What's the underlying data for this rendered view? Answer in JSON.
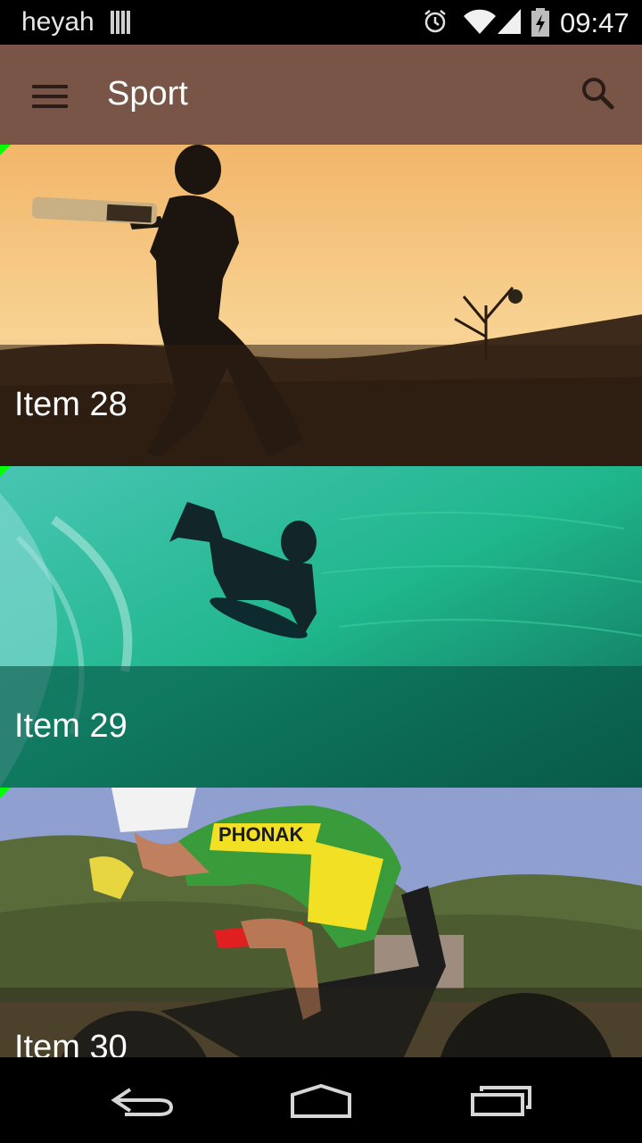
{
  "status_bar": {
    "carrier": "heyah",
    "time": "09:47",
    "icons": [
      "sim-icon",
      "alarm-icon",
      "wifi-icon",
      "signal-icon",
      "battery-charging-icon"
    ]
  },
  "app_bar": {
    "title": "Sport",
    "menu_icon": "hamburger-menu-icon",
    "search_icon": "search-icon",
    "color": "#795548"
  },
  "items": [
    {
      "label": "Item 28",
      "image": "cricket batsman silhouette at sunset"
    },
    {
      "label": "Item 29",
      "image": "bodyboarder riding a green wave"
    },
    {
      "label": "Item 30",
      "image": "cyclist in green-yellow jersey on time-trial bike"
    }
  ],
  "nav_bar": {
    "icons": [
      "back-icon",
      "home-icon",
      "recent-apps-icon"
    ]
  }
}
